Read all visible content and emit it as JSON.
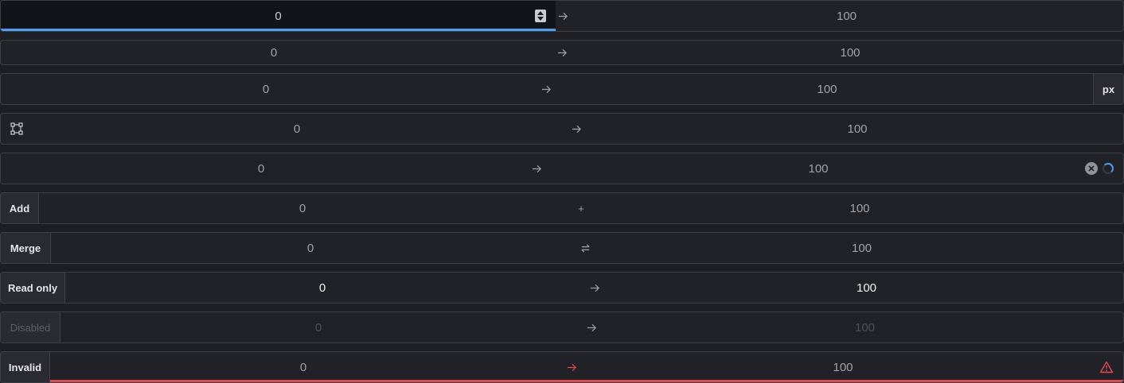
{
  "colors": {
    "focus_accent": "#4d9eee",
    "invalid_accent": "#e5484d",
    "background": "#1d1e23"
  },
  "rows": [
    {
      "id": "focused",
      "start": "0",
      "end": "100",
      "separator_icon": "arrow-right-icon",
      "has_stepper": true
    },
    {
      "id": "compact",
      "start": "0",
      "end": "100",
      "separator_icon": "arrow-right-icon"
    },
    {
      "id": "unit",
      "start": "0",
      "end": "100",
      "separator_icon": "arrow-right-icon",
      "unit_label": "px"
    },
    {
      "id": "leading-icon",
      "start": "0",
      "end": "100",
      "separator_icon": "arrow-right-icon",
      "leading_icon": "bounding-box-icon"
    },
    {
      "id": "clearable-loading",
      "start": "0",
      "end": "100",
      "separator_icon": "arrow-right-icon",
      "trailing": [
        "clear-icon",
        "spinner-icon"
      ]
    },
    {
      "id": "add",
      "label": "Add",
      "start": "0",
      "end": "100",
      "separator": "+"
    },
    {
      "id": "merge",
      "label": "Merge",
      "start": "0",
      "end": "100",
      "separator_icon": "swap-arrows-icon"
    },
    {
      "id": "read-only",
      "label": "Read only",
      "start": "0",
      "end": "100",
      "separator_icon": "arrow-right-icon"
    },
    {
      "id": "disabled",
      "label": "Disabled",
      "start": "0",
      "end": "100",
      "separator_icon": "arrow-right-icon"
    },
    {
      "id": "invalid",
      "label": "Invalid",
      "start": "0",
      "end": "100",
      "separator_icon": "arrow-right-icon",
      "trailing": [
        "warning-triangle-icon"
      ]
    }
  ]
}
